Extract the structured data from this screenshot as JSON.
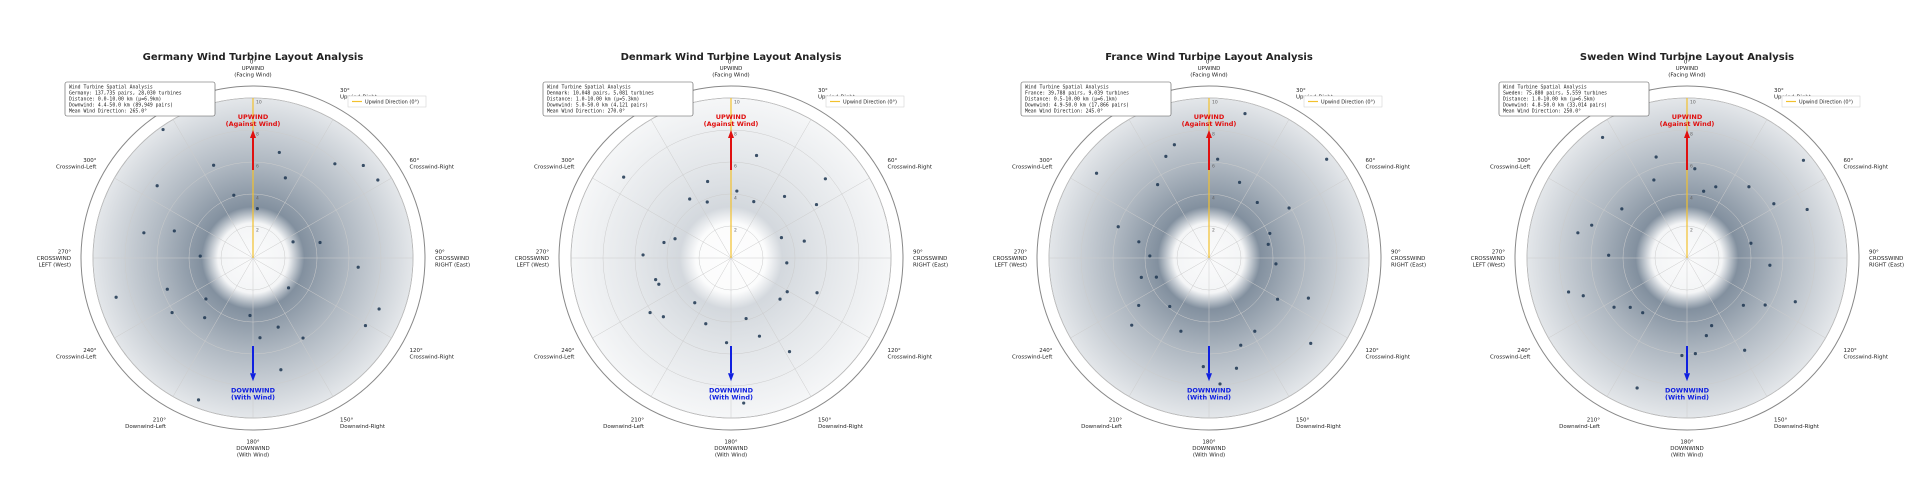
{
  "common": {
    "theta_ticks": [
      {
        "value": 0,
        "label": [
          "0°",
          "UPWIND",
          "(Facing Wind)"
        ]
      },
      {
        "value": 30,
        "label": [
          "30°",
          "Upwind-Right"
        ]
      },
      {
        "value": 60,
        "label": [
          "60°",
          "Crosswind-Right"
        ]
      },
      {
        "value": 90,
        "label": [
          "90°",
          "CROSSWIND",
          "RIGHT (East)"
        ]
      },
      {
        "value": 120,
        "label": [
          "120°",
          "Crosswind-Right"
        ]
      },
      {
        "value": 150,
        "label": [
          "150°",
          "Downwind-Right"
        ]
      },
      {
        "value": 180,
        "label": [
          "180°",
          "DOWNWIND",
          "(With Wind)"
        ]
      },
      {
        "value": 210,
        "label": [
          "210°",
          "Downwind-Left"
        ]
      },
      {
        "value": 240,
        "label": [
          "240°",
          "Crosswind-Left"
        ]
      },
      {
        "value": 270,
        "label": [
          "270°",
          "CROSSWIND",
          "LEFT (West)"
        ]
      },
      {
        "value": 300,
        "label": [
          "300°",
          "Crosswind-Left"
        ]
      },
      {
        "value": 330,
        "label": [
          "330°",
          "Upwind-Left"
        ]
      }
    ],
    "upwind_label": [
      "UPWIND",
      "(Against Wind)"
    ],
    "downwind_label": [
      "DOWNWIND",
      "(With Wind)"
    ],
    "legend_label": "Upwind Direction (0°)",
    "legend_color": "#f2c12e",
    "point_color": "#1c3550",
    "rlim": [
      0,
      10
    ],
    "rticks": [
      2,
      4,
      6,
      8,
      10
    ]
  },
  "chart_data": [
    {
      "type": "scatter",
      "title": "Germany Wind Turbine Layout Analysis",
      "info": [
        "Wind Turbine Spatial Analysis",
        "Germany: 137,735 pairs, 28,030 turbines",
        "Distance: 0.0-10.00 km (μ=6.9km)",
        "Downwind: 4.4-50.0 km (89,949 pairs)",
        "Mean Wind Direction: 265.0°"
      ],
      "theta": [
        5,
        22,
        41,
        58,
        77,
        95,
        112,
        130,
        148,
        166,
        183,
        201,
        219,
        236,
        254,
        272,
        289,
        307,
        325,
        343,
        14,
        68,
        121,
        175,
        229,
        283,
        337,
        50,
        160,
        250
      ],
      "r": [
        3.1,
        5.4,
        7.8,
        9.2,
        4.3,
        6.6,
        8.5,
        2.9,
        5.9,
        7.2,
        3.6,
        9.5,
        4.8,
        6.1,
        8.9,
        3.3,
        5.2,
        7.5,
        9.8,
        4.1,
        6.8,
        2.7,
        8.2,
        5.0,
        3.9,
        7.0,
        6.3,
        9.0,
        4.6,
        5.7
      ]
    },
    {
      "type": "scatter",
      "title": "Denmark Wind Turbine Layout Analysis",
      "info": [
        "Wind Turbine Spatial Analysis",
        "Denmark: 10,048 pairs, 5,081 turbines",
        "Distance: 1.0-10.00 km (μ=5.3km)",
        "Downwind: 5.0-50.0 km (4,121 pairs)",
        "Mean Wind Direction: 270.0°"
      ],
      "theta": [
        5,
        22,
        41,
        58,
        77,
        95,
        112,
        130,
        148,
        166,
        183,
        201,
        219,
        236,
        254,
        272,
        289,
        307,
        325,
        343,
        14,
        68,
        121,
        175,
        229,
        283,
        337,
        50,
        160,
        250
      ],
      "r": [
        4.2,
        3.8,
        5.1,
        6.3,
        4.7,
        3.5,
        5.8,
        4.0,
        6.9,
        3.9,
        5.3,
        4.4,
        3.6,
        6.1,
        4.9,
        5.5,
        3.7,
        8.4,
        4.5,
        5.0,
        6.6,
        3.4,
        4.1,
        9.1,
        5.6,
        4.3,
        3.8,
        7.7,
        5.2,
        4.8
      ]
    },
    {
      "type": "scatter",
      "title": "France Wind Turbine Layout Analysis",
      "info": [
        "Wind Turbine Spatial Analysis",
        "France: 39,788 pairs, 9,039 turbines",
        "Distance: 0.5-10.00 km (μ=6.1km)",
        "Downwind: 4.9-50.0 km (17,866 pairs)",
        "Mean Wind Direction: 245.0°"
      ],
      "theta": [
        5,
        22,
        41,
        58,
        77,
        95,
        112,
        130,
        148,
        166,
        183,
        201,
        219,
        236,
        254,
        272,
        289,
        307,
        325,
        343,
        14,
        68,
        121,
        175,
        229,
        283,
        337,
        50,
        160,
        250
      ],
      "r": [
        6.2,
        5.1,
        4.6,
        5.9,
        3.8,
        4.2,
        6.7,
        8.3,
        5.4,
        7.1,
        6.8,
        4.9,
        3.9,
        5.3,
        4.4,
        3.7,
        6.0,
        8.8,
        5.6,
        7.4,
        9.3,
        4.1,
        5.0,
        7.9,
        6.4,
        4.5,
        6.9,
        9.6,
        5.8,
        3.5
      ]
    },
    {
      "type": "scatter",
      "title": "Sweden Wind Turbine Layout Analysis",
      "info": [
        "Wind Turbine Spatial Analysis",
        "Sweden: 75,880 pairs, 5,559 turbines",
        "Distance: 1.0-10.00 km (μ=6.5km)",
        "Downwind: 4.8-50.0 km (33,014 pairs)",
        "Mean Wind Direction: 250.0°"
      ],
      "theta": [
        5,
        22,
        41,
        58,
        77,
        95,
        112,
        130,
        148,
        166,
        183,
        201,
        219,
        236,
        254,
        272,
        289,
        307,
        325,
        343,
        14,
        68,
        121,
        175,
        229,
        283,
        337,
        50,
        160,
        250
      ],
      "r": [
        5.6,
        4.8,
        5.9,
        6.4,
        4.1,
        5.2,
        7.3,
        4.6,
        6.8,
        5.0,
        6.1,
        8.7,
        4.4,
        5.5,
        7.7,
        4.9,
        6.3,
        5.1,
        9.2,
        6.6,
        4.3,
        8.1,
        5.7,
        6.0,
        4.7,
        7.0,
        5.3,
        9.5,
        4.5,
        6.9
      ]
    }
  ]
}
